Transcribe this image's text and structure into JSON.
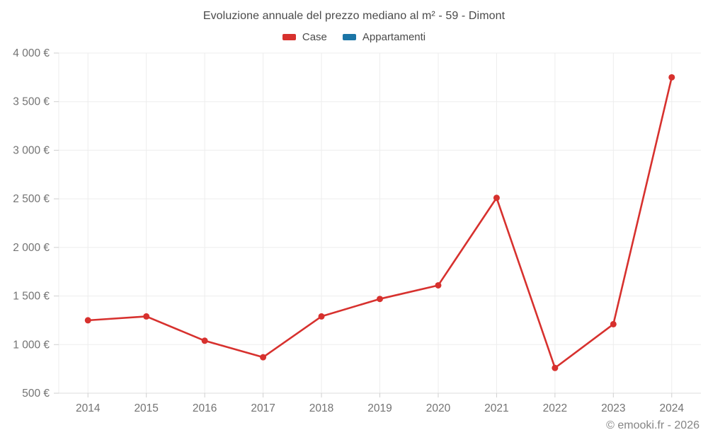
{
  "header": {
    "title": "Evoluzione annuale del prezzo mediano al m² - 59 - Dimont"
  },
  "legend": {
    "items": [
      {
        "label": "Case",
        "color": "#d7312e"
      },
      {
        "label": "Appartamenti",
        "color": "#1b75a6"
      }
    ]
  },
  "footer": {
    "credit": "© emooki.fr - 2026"
  },
  "chart_data": {
    "type": "line",
    "title": "Evoluzione annuale del prezzo mediano al m² - 59 - Dimont",
    "categories": [
      "2014",
      "2015",
      "2016",
      "2017",
      "2018",
      "2019",
      "2020",
      "2021",
      "2022",
      "2023",
      "2024"
    ],
    "series": [
      {
        "name": "Case",
        "color": "#d7312e",
        "values": [
          1250,
          1290,
          1040,
          870,
          1290,
          1470,
          1610,
          2510,
          760,
          1210,
          3750
        ]
      },
      {
        "name": "Appartamenti",
        "color": "#1b75a6",
        "values": []
      }
    ],
    "xlabel": "",
    "ylabel": "",
    "ylim": [
      500,
      4000
    ],
    "ytick_step": 500,
    "ytick_suffix": " €",
    "grid": true,
    "legend_position": "top",
    "marker_radius": 4.5,
    "line_width": 2.6,
    "colors": {
      "grid": "#ededed",
      "axis": "#dcdcdc",
      "tick": "#cfcfcf",
      "axis_text": "#737373",
      "title_text": "#4a4a4a",
      "footer_text": "#858585"
    }
  }
}
